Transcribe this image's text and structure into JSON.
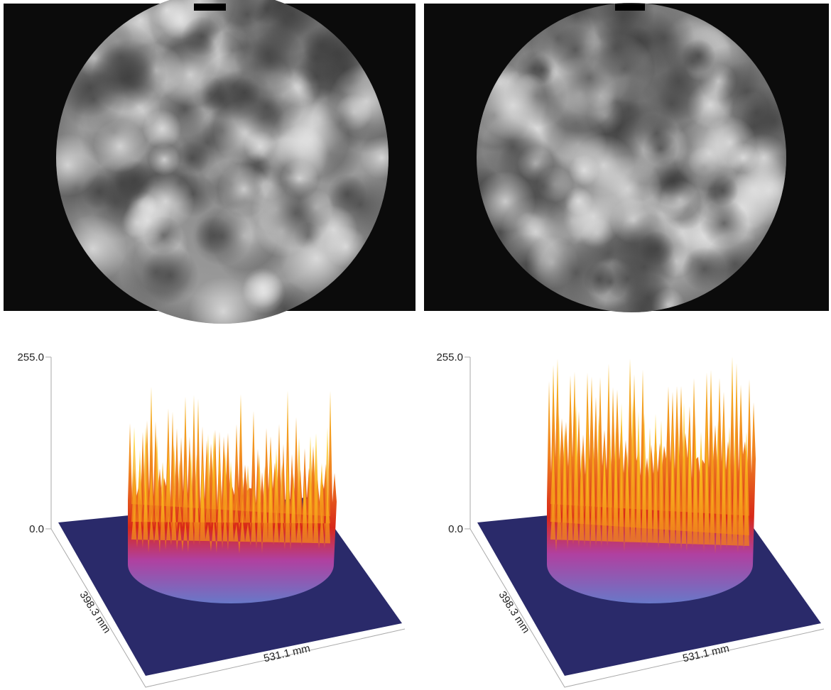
{
  "panels": [
    {
      "z_top": "255.0",
      "z_bottom": "0.0",
      "y_axis": "398.3 mm",
      "x_axis": "531.1 mm"
    },
    {
      "z_top": "255.0",
      "z_bottom": "0.0",
      "y_axis": "398.3 mm",
      "x_axis": "531.1 mm"
    }
  ]
}
